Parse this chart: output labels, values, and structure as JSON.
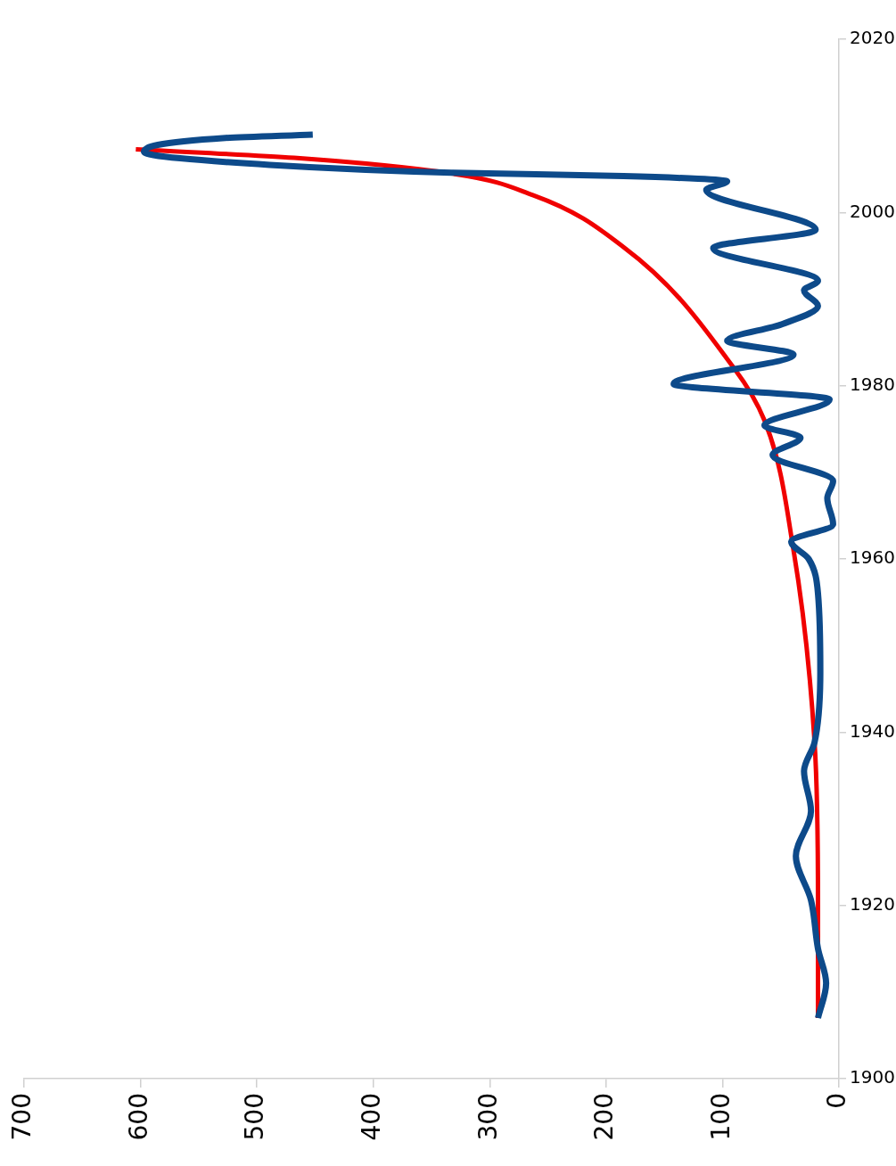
{
  "chart_data": {
    "type": "line",
    "xlim": [
      700,
      0
    ],
    "xticks": [
      700,
      600,
      500,
      400,
      300,
      200,
      100,
      0
    ],
    "ylim": [
      1900,
      2020
    ],
    "yticks": [
      1900,
      1920,
      1940,
      1960,
      1980,
      2000,
      2020
    ],
    "grid": false,
    "legend": false,
    "marker": "none",
    "line_style": "solid",
    "series": [
      {
        "color": "#0d4a8a",
        "values": [
          1907,
          1911,
          1915,
          1920.6,
          1925.7,
          1930.9,
          1935.5,
          1938.8,
          1947,
          1956,
          1960,
          1962,
          1964,
          1967,
          1969,
          1972,
          1974,
          1975.4,
          1978.4,
          1980.2,
          1983.6,
          1985.2,
          1987.1,
          1989.2,
          1991,
          1992.1,
          1995.9,
          1998,
          2002.6,
          2003.6,
          2004.2,
          2004.6,
          2005.5,
          2007,
          2008.6,
          2009
        ],
        "x": [
          18,
          11,
          18,
          24,
          37,
          24,
          30,
          21,
          16,
          18,
          26,
          41,
          5,
          10,
          5,
          57,
          33,
          64,
          8,
          142,
          39,
          96,
          49,
          18,
          30,
          18,
          108,
          20,
          114,
          96,
          185,
          333,
          489,
          597,
          527,
          452
        ]
      },
      {
        "color": "#f00000",
        "type": "line",
        "values": [
          1907,
          1920,
          1939,
          1961,
          1976,
          1982,
          1996,
          2002,
          2004.5,
          2006.3,
          2007.3
        ],
        "x": [
          18,
          18,
          21,
          39,
          64,
          90,
          185,
          263,
          333,
          468,
          604
        ]
      }
    ]
  }
}
